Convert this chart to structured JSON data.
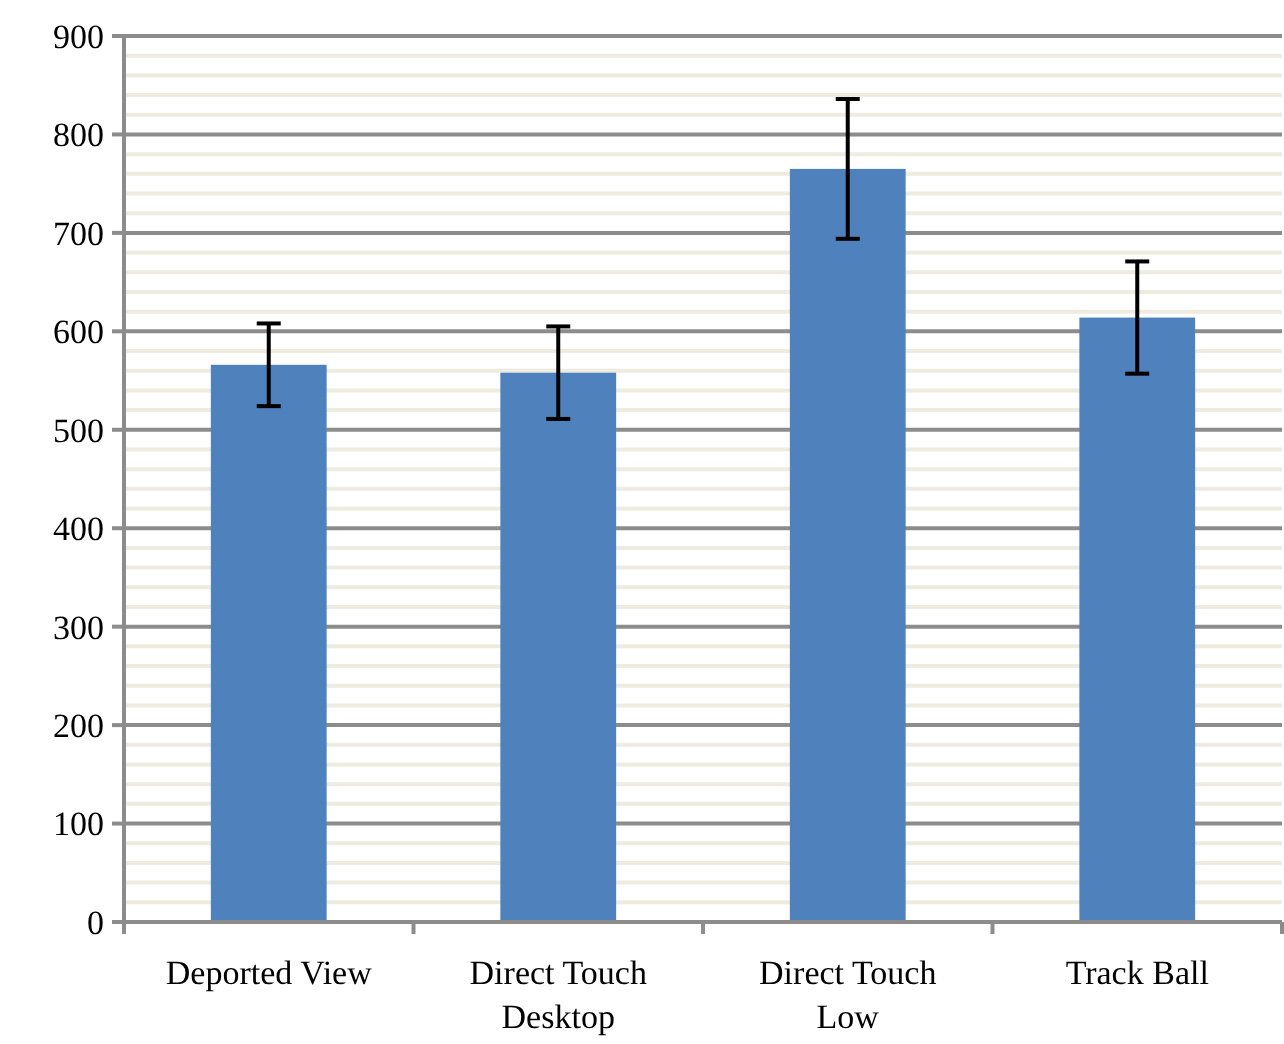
{
  "chart_data": {
    "type": "bar",
    "categories": [
      "Deported View",
      "Direct Touch Desktop",
      "Direct Touch Low",
      "Track Ball"
    ],
    "values": [
      566,
      558,
      765,
      614
    ],
    "errors": [
      42,
      47,
      71,
      57
    ],
    "color": "#4f81bd",
    "ylim": [
      0,
      900
    ],
    "yticks": [
      0,
      {
        "value": 20,
        "label": null
      },
      {
        "value": 40,
        "label": null
      },
      {
        "value": 60,
        "label": null
      },
      {
        "value": 80,
        "label": null
      },
      100,
      {
        "value": 120,
        "label": null
      },
      {
        "value": 140,
        "label": null
      },
      {
        "value": 160,
        "label": null
      },
      {
        "value": 180,
        "label": null
      },
      200,
      {
        "value": 220,
        "label": null
      },
      {
        "value": 240,
        "label": null
      },
      {
        "value": 260,
        "label": null
      },
      {
        "value": 280,
        "label": null
      },
      300,
      {
        "value": 320,
        "label": null
      },
      {
        "value": 340,
        "label": null
      },
      {
        "value": 360,
        "label": null
      },
      {
        "value": 380,
        "label": null
      },
      400,
      {
        "value": 420,
        "label": null
      },
      {
        "value": 440,
        "label": null
      },
      {
        "value": 460,
        "label": null
      },
      {
        "value": 480,
        "label": null
      },
      500,
      {
        "value": 520,
        "label": null
      },
      {
        "value": 540,
        "label": null
      },
      {
        "value": 560,
        "label": null
      },
      {
        "value": 580,
        "label": null
      },
      600,
      {
        "value": 620,
        "label": null
      },
      {
        "value": 640,
        "label": null
      },
      {
        "value": 660,
        "label": null
      },
      {
        "value": 680,
        "label": null
      },
      700,
      {
        "value": 720,
        "label": null
      },
      {
        "value": 740,
        "label": null
      },
      {
        "value": 760,
        "label": null
      },
      {
        "value": 780,
        "label": null
      },
      800,
      {
        "value": 820,
        "label": null
      },
      {
        "value": 840,
        "label": null
      },
      {
        "value": 860,
        "label": null
      },
      {
        "value": 880,
        "label": null
      },
      900
    ],
    "grid": true
  }
}
